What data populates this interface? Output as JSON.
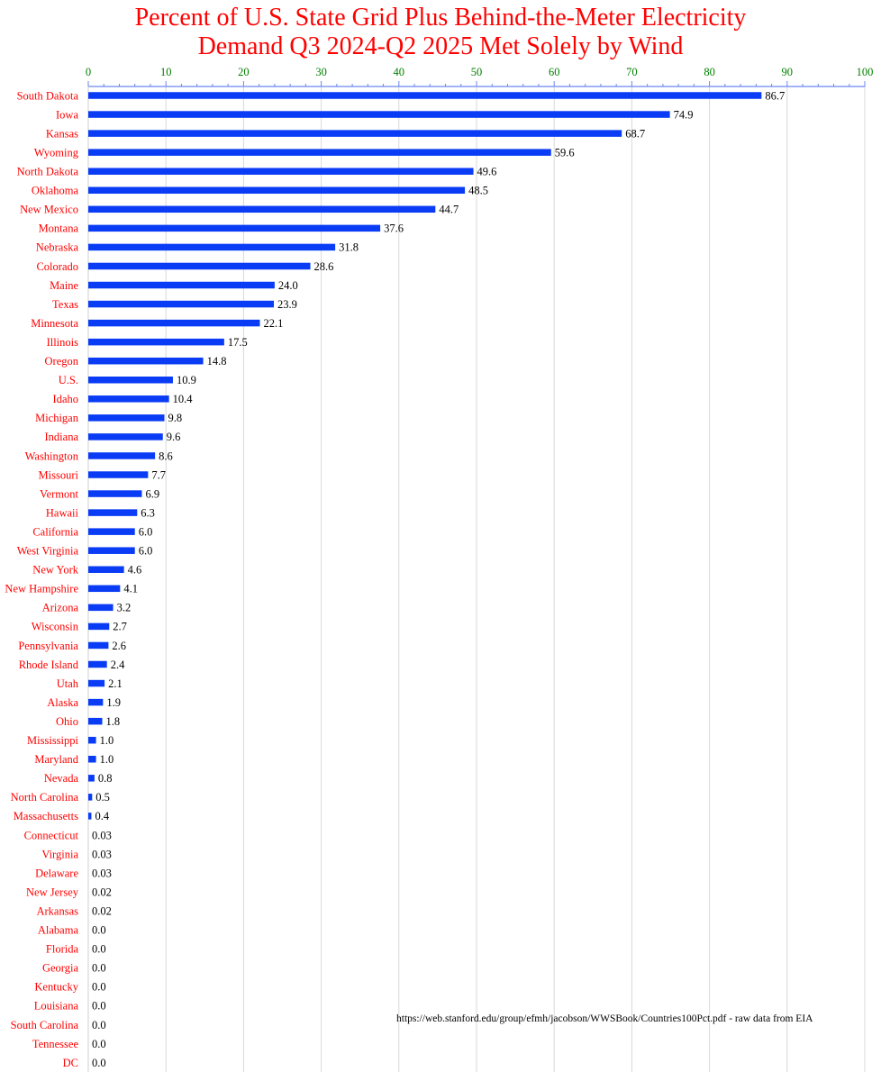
{
  "chart_data": {
    "type": "bar",
    "orientation": "horizontal",
    "title_lines": [
      "Percent of U.S. State Grid Plus Behind-the-Meter Electricity",
      "Demand Q3 2024-Q2 2025 Met Solely by Wind"
    ],
    "xlim": [
      0,
      100
    ],
    "xticks": [
      "0",
      "10",
      "20",
      "30",
      "40",
      "50",
      "60",
      "70",
      "80",
      "90",
      "100"
    ],
    "axis_position": "top",
    "grid": true,
    "bar_color": "#0a3cf5",
    "title_color": "#ff0000",
    "category_label_color": "#ff0000",
    "tick_label_color": "#008000",
    "categories": [
      "South Dakota",
      "Iowa",
      "Kansas",
      "Wyoming",
      "North Dakota",
      "Oklahoma",
      "New Mexico",
      "Montana",
      "Nebraska",
      "Colorado",
      "Maine",
      "Texas",
      "Minnesota",
      "Illinois",
      "Oregon",
      "U.S.",
      "Idaho",
      "Michigan",
      "Indiana",
      "Washington",
      "Missouri",
      "Vermont",
      "Hawaii",
      "California",
      "West Virginia",
      "New York",
      "New Hampshire",
      "Arizona",
      "Wisconsin",
      "Pennsylvania",
      "Rhode Island",
      "Utah",
      "Alaska",
      "Ohio",
      "Mississippi",
      "Maryland",
      "Nevada",
      "North Carolina",
      "Massachusetts",
      "Connecticut",
      "Virginia",
      "Delaware",
      "New Jersey",
      "Arkansas",
      "Alabama",
      "Florida",
      "Georgia",
      "Kentucky",
      "Louisiana",
      "South Carolina",
      "Tennessee",
      "DC"
    ],
    "values": [
      86.7,
      74.9,
      68.7,
      59.6,
      49.6,
      48.5,
      44.7,
      37.6,
      31.8,
      28.6,
      24.0,
      23.9,
      22.1,
      17.5,
      14.8,
      10.9,
      10.4,
      9.8,
      9.6,
      8.6,
      7.7,
      6.9,
      6.3,
      6.0,
      6.0,
      4.6,
      4.1,
      3.2,
      2.7,
      2.6,
      2.4,
      2.1,
      1.9,
      1.8,
      1.0,
      1.0,
      0.8,
      0.5,
      0.4,
      0.03,
      0.03,
      0.03,
      0.02,
      0.02,
      0.0,
      0.0,
      0.0,
      0.0,
      0.0,
      0.0,
      0.0,
      0.0
    ],
    "value_labels": [
      "86.7",
      "74.9",
      "68.7",
      "59.6",
      "49.6",
      "48.5",
      "44.7",
      "37.6",
      "31.8",
      "28.6",
      "24.0",
      "23.9",
      "22.1",
      "17.5",
      "14.8",
      "10.9",
      "10.4",
      "9.8",
      "9.6",
      "8.6",
      "7.7",
      "6.9",
      "6.3",
      "6.0",
      "6.0",
      "4.6",
      "4.1",
      "3.2",
      "2.7",
      "2.6",
      "2.4",
      "2.1",
      "1.9",
      "1.8",
      "1.0",
      "1.0",
      "0.8",
      "0.5",
      "0.4",
      "0.03",
      "0.03",
      "0.03",
      "0.02",
      "0.02",
      "0.0",
      "0.0",
      "0.0",
      "0.0",
      "0.0",
      "0.0",
      "0.0",
      "0.0"
    ],
    "annotation": "https://web.stanford.edu/group/efmh/jacobson/WWSBook/Countries100Pct.pdf - raw data from EIA"
  }
}
